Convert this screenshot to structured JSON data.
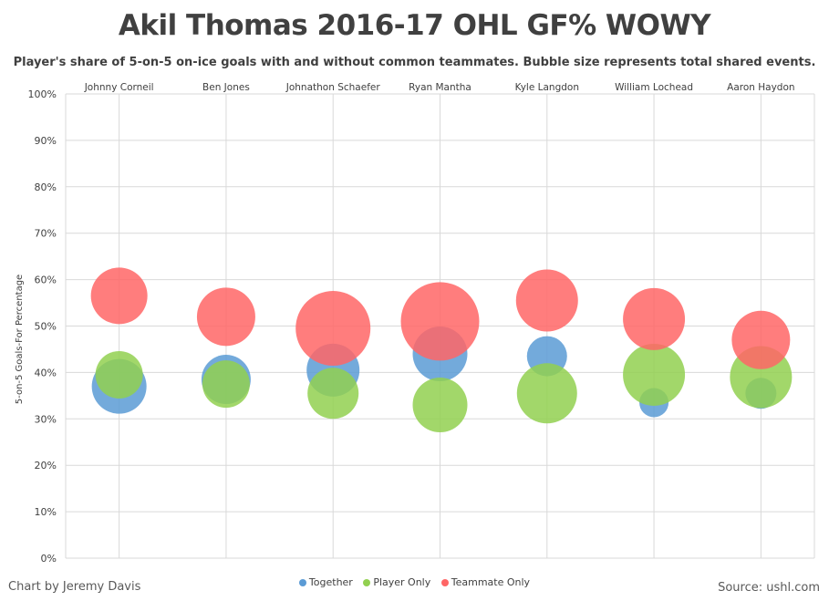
{
  "title": "Akil Thomas 2016-17 OHL GF% WOWY",
  "subtitle": "Player's share of 5-on-5 on-ice goals with and without common teammates. Bubble size represents total shared events.",
  "credit": "Chart by Jeremy Davis",
  "source": "Source: ushl.com",
  "colors": {
    "together": "#5b9bd5",
    "player_only": "#92d050",
    "teammate_only": "#ff6666"
  },
  "chart_data": {
    "type": "bubble",
    "title": "Akil Thomas 2016-17 OHL GF% WOWY",
    "ylabel": "5-on-5 Goals-For Percentage",
    "xlabel": "",
    "ylim": [
      0,
      100
    ],
    "yticks": [
      "0%",
      "10%",
      "20%",
      "30%",
      "40%",
      "50%",
      "60%",
      "70%",
      "80%",
      "90%",
      "100%"
    ],
    "grid": true,
    "legend_position": "bottom",
    "categories": [
      "Johnny Corneil",
      "Ben Jones",
      "Johnathon Schaefer",
      "Ryan Mantha",
      "Kyle Langdon",
      "William Lochead",
      "Aaron Haydon"
    ],
    "series": [
      {
        "name": "Together",
        "color": "#5b9bd5",
        "values": [
          37,
          38.5,
          40.5,
          44,
          43.5,
          33.5,
          35.5
        ],
        "sizes": [
          30,
          27,
          29,
          30,
          22,
          16,
          17
        ]
      },
      {
        "name": "Player Only",
        "color": "#92d050",
        "values": [
          39.5,
          37.5,
          35.5,
          33,
          35.5,
          39.5,
          39
        ],
        "sizes": [
          26,
          26,
          28,
          30,
          33,
          34,
          34
        ]
      },
      {
        "name": "Teammate Only",
        "color": "#ff6666",
        "values": [
          56.5,
          52,
          49.5,
          51,
          55.5,
          51.5,
          47
        ],
        "sizes": [
          31,
          32,
          41,
          43,
          34,
          34,
          32
        ]
      }
    ]
  }
}
